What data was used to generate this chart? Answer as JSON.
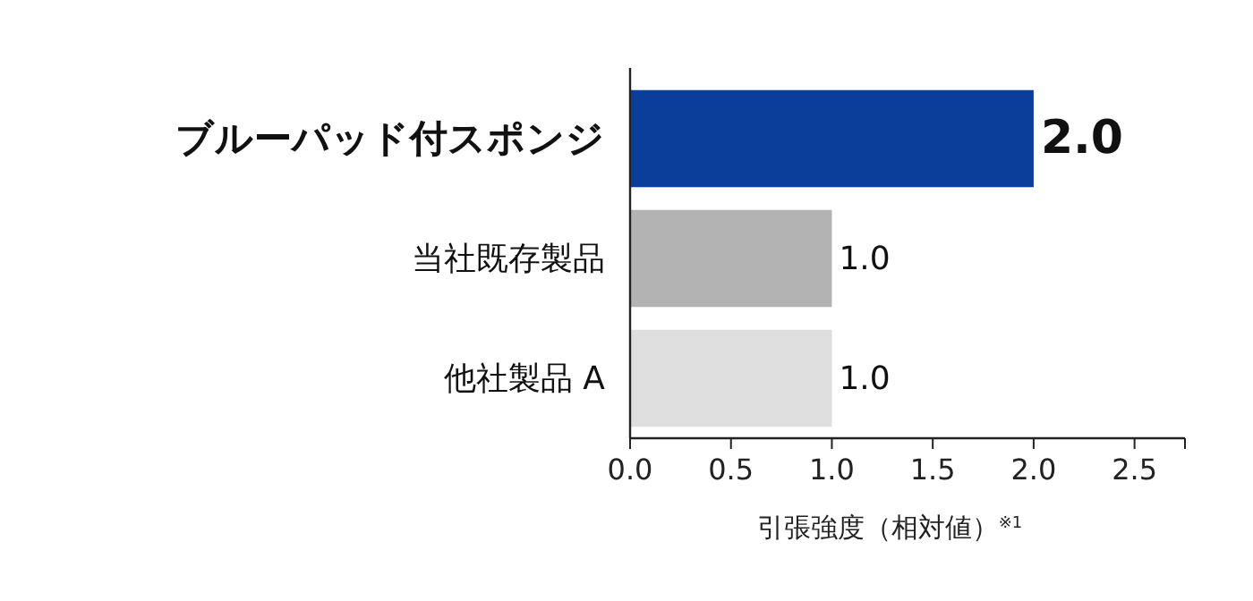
{
  "chart_data": {
    "type": "bar",
    "orientation": "horizontal",
    "categories": [
      "ブルーパッド付スポンジ",
      "当社既存製品",
      "他社製品 A"
    ],
    "values": [
      2.0,
      1.0,
      1.0
    ],
    "colors": [
      "#0b3d9a",
      "#b3b3b3",
      "#dedede"
    ],
    "value_labels": [
      "2.0",
      "1.0",
      "1.0"
    ],
    "xlabel": "引張強度（相対値）$^{※1}$",
    "xlim": [
      0,
      2.75
    ],
    "xticks": [
      {
        "value": 0,
        "label": "0.0"
      },
      {
        "value": 0.5,
        "label": "0.5"
      },
      {
        "value": 1,
        "label": "1.0"
      },
      {
        "value": 1.5,
        "label": "1.5"
      },
      {
        "value": 2,
        "label": "2.0"
      },
      {
        "value": 2.5,
        "label": "2.5"
      }
    ],
    "grid": false
  }
}
